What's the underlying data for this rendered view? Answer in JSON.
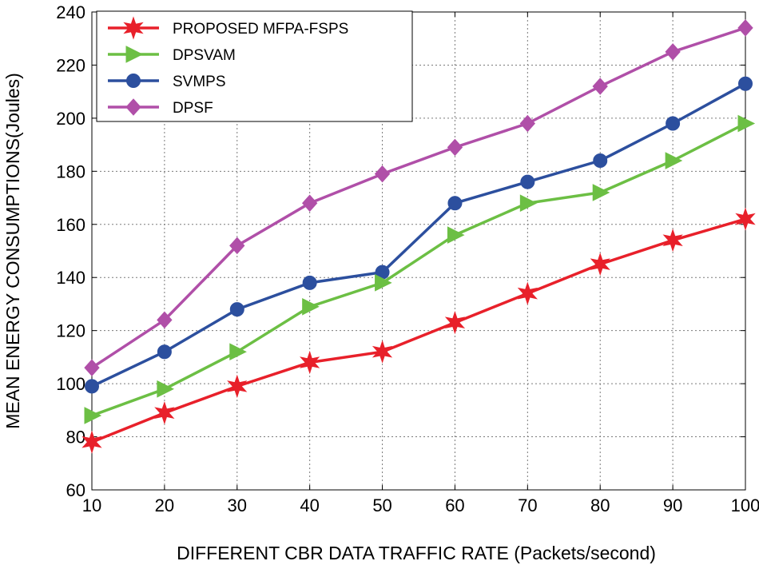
{
  "chart_data": {
    "type": "line",
    "xlabel": "DIFFERENT CBR DATA TRAFFIC RATE (Packets/second)",
    "ylabel": "MEAN ENERGY CONSUMPTIONS(Joules)",
    "x": [
      10,
      20,
      30,
      40,
      50,
      60,
      70,
      80,
      90,
      100
    ],
    "xlim": [
      10,
      100
    ],
    "ylim": [
      60,
      240
    ],
    "xticks": [
      10,
      20,
      30,
      40,
      50,
      60,
      70,
      80,
      90,
      100
    ],
    "yticks": [
      60,
      80,
      100,
      120,
      140,
      160,
      180,
      200,
      220,
      240
    ],
    "grid": true,
    "legend_position": "top-left",
    "series": [
      {
        "name": "PROPOSED MFPA-FSPS",
        "color": "#e8202a",
        "marker": "star",
        "values": [
          78,
          89,
          99,
          108,
          112,
          123,
          134,
          145,
          154,
          162
        ]
      },
      {
        "name": "DPSVAM",
        "color": "#6cbf44",
        "marker": "triangle-right",
        "values": [
          88,
          98,
          112,
          129,
          138,
          156,
          168,
          172,
          184,
          198
        ]
      },
      {
        "name": "SVMPS",
        "color": "#2c4f9e",
        "marker": "circle",
        "values": [
          99,
          112,
          128,
          138,
          142,
          168,
          176,
          184,
          198,
          213
        ]
      },
      {
        "name": "DPSF",
        "color": "#b04fa8",
        "marker": "diamond",
        "values": [
          106,
          124,
          152,
          168,
          179,
          189,
          198,
          212,
          225,
          234
        ]
      }
    ]
  }
}
